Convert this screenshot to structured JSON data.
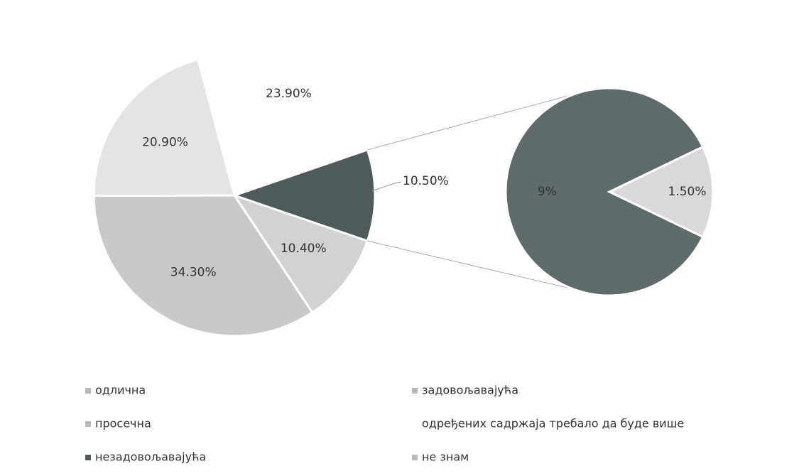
{
  "chart_data": {
    "type": "pie-of-pie",
    "categories": [
      "задовољавајућа",
      "одлична",
      "просечна",
      "одређених садржаја требало да буде више",
      "незадовољавајућа",
      "не знам"
    ],
    "values": [
      10.4,
      34.3,
      20.9,
      23.9,
      9,
      1.5
    ],
    "value_labels": [
      "10.40%",
      "34.30%",
      "20.90%",
      "23.90%",
      "9%",
      "1.50%"
    ],
    "colors": [
      "#d2d2d2",
      "#c9c9c9",
      "#e4e4e4",
      "#ffffff",
      "#5f6b6b",
      "#d9d9d9"
    ],
    "secondary": [
      4,
      5
    ],
    "other_value": 10.5,
    "other_label": "10.50%",
    "other_color": "#4f5a5a"
  }
}
